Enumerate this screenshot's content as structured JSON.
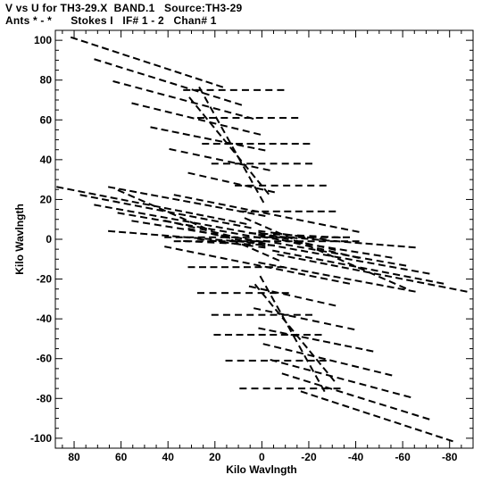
{
  "chart_data": {
    "type": "scatter",
    "title": "V vs U for TH3-29.X  BAND.1   Source:TH3-29",
    "subtitle": "Ants * - *      Stokes I   IF# 1 - 2   Chan# 1",
    "xlabel": "Kilo Wavlngth",
    "ylabel": "Kilo Wavlngth",
    "xlim": [
      88,
      -90
    ],
    "ylim": [
      -105,
      105
    ],
    "x_ticks": [
      80,
      60,
      40,
      20,
      0,
      -20,
      -40,
      -60,
      -80
    ],
    "y_ticks": [
      100,
      80,
      60,
      40,
      20,
      0,
      -20,
      -40,
      -60,
      -80,
      -100
    ],
    "grid": false,
    "marker": "short-dash",
    "color": "#000000",
    "series": [
      {
        "tracks": [
          [
            [
              80,
              101
            ],
            [
              18,
              77
            ]
          ],
          [
            [
              32,
              75
            ],
            [
              -8,
              75
            ]
          ],
          [
            [
              70,
              90
            ],
            [
              10,
              68
            ]
          ],
          [
            [
              26,
              61
            ],
            [
              -14,
              61
            ]
          ],
          [
            [
              62,
              79
            ],
            [
              5,
              61
            ]
          ],
          [
            [
              24,
              48
            ],
            [
              -19,
              48
            ]
          ],
          [
            [
              54,
              68
            ],
            [
              2,
              53
            ]
          ],
          [
            [
              20,
              38
            ],
            [
              -20,
              38
            ]
          ],
          [
            [
              46,
              56
            ],
            [
              0,
              45
            ]
          ],
          [
            [
              10,
              27
            ],
            [
              -26,
              27
            ]
          ],
          [
            [
              38,
              45
            ],
            [
              -2,
              35
            ]
          ],
          [
            [
              8,
              14
            ],
            [
              -30,
              14
            ]
          ],
          [
            [
              30,
              33
            ],
            [
              -4,
              24
            ]
          ],
          [
            [
              4,
              3
            ],
            [
              -32,
              1
            ]
          ],
          [
            [
              86,
              26
            ],
            [
              8,
              8
            ]
          ],
          [
            [
              76,
              22
            ],
            [
              6,
              6
            ]
          ],
          [
            [
              70,
              17
            ],
            [
              4,
              3
            ]
          ],
          [
            [
              60,
              13
            ],
            [
              2,
              1
            ]
          ],
          [
            [
              54,
              9
            ],
            [
              1,
              -1
            ]
          ],
          [
            [
              40,
              9
            ],
            [
              0,
              -2
            ]
          ],
          [
            [
              30,
              5
            ],
            [
              0,
              -3
            ]
          ],
          [
            [
              26,
              0
            ],
            [
              0,
              -4
            ]
          ],
          [
            [
              40,
              1
            ],
            [
              -36,
              1
            ]
          ],
          [
            [
              64,
              4
            ],
            [
              0,
              -2
            ]
          ],
          [
            [
              64,
              26
            ],
            [
              0,
              12
            ]
          ],
          [
            [
              60,
              24
            ],
            [
              -6,
              -10
            ]
          ],
          [
            [
              36,
              22
            ],
            [
              -40,
              4
            ]
          ],
          [
            [
              -86,
              -26
            ],
            [
              -8,
              -8
            ]
          ],
          [
            [
              -76,
              -22
            ],
            [
              -6,
              -6
            ]
          ],
          [
            [
              -70,
              -17
            ],
            [
              -4,
              -3
            ]
          ],
          [
            [
              -60,
              -13
            ],
            [
              -2,
              -1
            ]
          ],
          [
            [
              -54,
              -9
            ],
            [
              -1,
              1
            ]
          ],
          [
            [
              -40,
              -9
            ],
            [
              0,
              2
            ]
          ],
          [
            [
              -30,
              -5
            ],
            [
              0,
              3
            ]
          ],
          [
            [
              -26,
              0
            ],
            [
              0,
              4
            ]
          ],
          [
            [
              -40,
              -1
            ],
            [
              36,
              -1
            ]
          ],
          [
            [
              -64,
              -4
            ],
            [
              0,
              2
            ]
          ],
          [
            [
              -64,
              -26
            ],
            [
              0,
              -12
            ]
          ],
          [
            [
              -60,
              -24
            ],
            [
              6,
              10
            ]
          ],
          [
            [
              -36,
              -22
            ],
            [
              40,
              -4
            ]
          ],
          [
            [
              -80,
              -101
            ],
            [
              -18,
              -77
            ]
          ],
          [
            [
              -32,
              -75
            ],
            [
              8,
              -75
            ]
          ],
          [
            [
              -70,
              -90
            ],
            [
              -10,
              -68
            ]
          ],
          [
            [
              -26,
              -61
            ],
            [
              14,
              -61
            ]
          ],
          [
            [
              -62,
              -79
            ],
            [
              -5,
              -61
            ]
          ],
          [
            [
              -24,
              -48
            ],
            [
              19,
              -48
            ]
          ],
          [
            [
              -54,
              -68
            ],
            [
              -2,
              -53
            ]
          ],
          [
            [
              -20,
              -38
            ],
            [
              20,
              -38
            ]
          ],
          [
            [
              -46,
              -56
            ],
            [
              0,
              -45
            ]
          ],
          [
            [
              -10,
              -27
            ],
            [
              26,
              -27
            ]
          ],
          [
            [
              -38,
              -45
            ],
            [
              2,
              -35
            ]
          ],
          [
            [
              -8,
              -14
            ],
            [
              30,
              -14
            ]
          ],
          [
            [
              -30,
              -33
            ],
            [
              4,
              -24
            ]
          ],
          [
            [
              -4,
              -3
            ],
            [
              32,
              -1
            ]
          ],
          [
            [
              26,
              75
            ],
            [
              0,
              20
            ]
          ],
          [
            [
              -26,
              -75
            ],
            [
              0,
              -20
            ]
          ],
          [
            [
              30,
              70
            ],
            [
              -2,
              24
            ]
          ],
          [
            [
              -30,
              -70
            ],
            [
              2,
              -24
            ]
          ]
        ]
      }
    ]
  }
}
